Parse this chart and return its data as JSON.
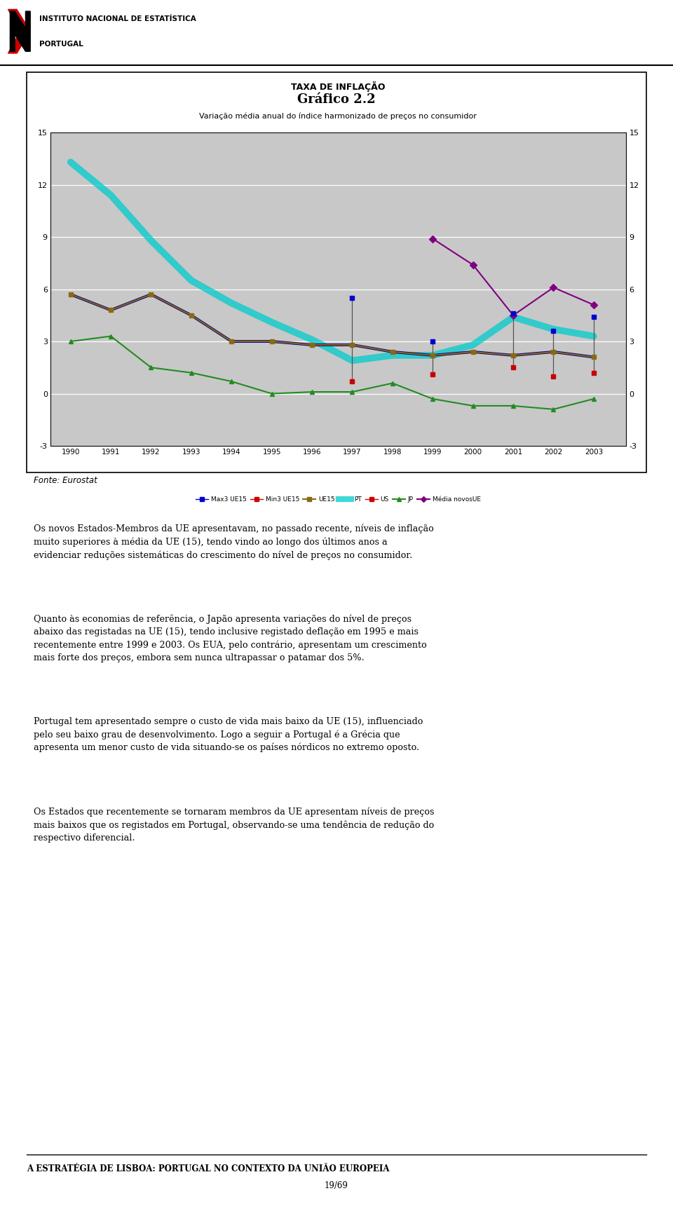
{
  "title_main": "Gráfico 2.2",
  "chart_title_line1": "TAXA DE INFLAÇÃO",
  "chart_title_line2": "Variação média anual do índice harmonizado de preços no consumidor",
  "years": [
    1990,
    1991,
    1992,
    1993,
    1994,
    1995,
    1996,
    1997,
    1998,
    1999,
    2000,
    2001,
    2002,
    2003
  ],
  "PT_full": [
    13.3,
    11.4,
    8.8,
    6.5,
    5.2,
    4.1,
    3.1,
    1.9,
    2.2,
    2.2,
    2.8,
    4.4,
    3.7,
    3.3
  ],
  "UE15_full": [
    5.7,
    4.8,
    5.7,
    4.5,
    3.0,
    3.0,
    2.8,
    2.8,
    2.4,
    2.2,
    2.4,
    2.2,
    2.4,
    2.1
  ],
  "JP_full": [
    3.0,
    3.3,
    1.5,
    1.2,
    0.7,
    0.0,
    0.1,
    0.1,
    0.6,
    -0.3,
    -0.7,
    -0.7,
    -0.9,
    -0.3
  ],
  "novos_x": [
    1999,
    2000,
    2001,
    2002,
    2003
  ],
  "novos_y": [
    8.9,
    7.4,
    4.5,
    6.1,
    5.1
  ],
  "bar_years": [
    1997,
    1999,
    2001,
    2002,
    2003
  ],
  "max3_vals": [
    5.5,
    3.0,
    4.6,
    3.6,
    4.4
  ],
  "min3_vals": [
    0.7,
    1.1,
    1.5,
    1.0,
    1.2
  ],
  "ylim": [
    -3,
    15
  ],
  "yticks": [
    -3,
    0,
    3,
    6,
    9,
    12,
    15
  ],
  "ytick_labels": [
    "-3",
    "0",
    "3",
    "6",
    "9",
    "12",
    "15"
  ],
  "chart_bg": "#C8C8C8",
  "fonte_text": "Fonte: Eurostat",
  "body_text1": "Os novos Estados-Membros da UE apresentavam, no passado recente, níveis de inflação\nmuito superiores à média da UE (15), tendo vindo ao longo dos últimos anos a\nevidenciar reduções sistemáticas do crescimento do nível de preços no consumidor.",
  "body_text2": "Quanto às economias de referência, o Japão apresenta variações do nível de preços\nabaixo das registadas na UE (15), tendo inclusive registado deflação em 1995 e mais\nrecentemente entre 1999 e 2003. Os EUA, pelo contrário, apresentam um crescimento\nmais forte dos preços, embora sem nunca ultrapassar o patamar dos 5%.",
  "body_text3": "Portugal tem apresentado sempre o custo de vida mais baixo da UE (15), influenciado\npelo seu baixo grau de desenvolvimento. Logo a seguir a Portugal é a Grécia que\napresenta um menor custo de vida situando-se os países nórdicos no extremo oposto.",
  "body_text4": "Os Estados que recentemente se tornaram membros da UE apresentam níveis de preços\nmais baixos que os registados em Portugal, observando-se uma tendência de redução do\nrespectivo diferencial.",
  "footer_text1": "A ESTRATÉGIA DE LISBOA: PORTUGAL NO CONTEXTO DA UNIÃO EUROPEIA",
  "footer_text2": "19/69",
  "color_PT": "#00CCCC",
  "color_UE15_dark": "#00008B",
  "color_UE15_brown": "#8B6914",
  "color_JP": "#228B22",
  "color_novos": "#800080",
  "color_max3": "#0000CC",
  "color_min3": "#CC0000"
}
